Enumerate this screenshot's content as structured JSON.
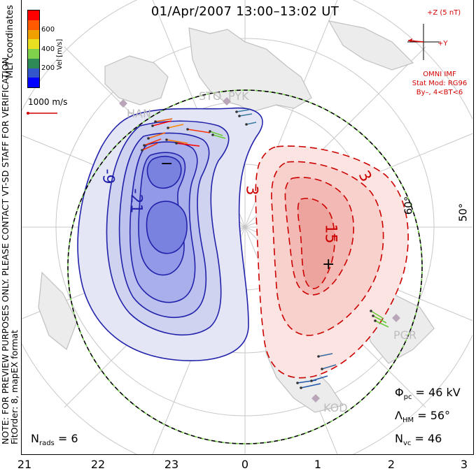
{
  "title": "01/Apr/2007 13:00–13:02 UT",
  "colorbar": {
    "unit_label": "Vel [m/s]",
    "ticks": [
      "600",
      "400",
      "200"
    ],
    "colors": [
      "#0000ff",
      "#3355cc",
      "#2e8b57",
      "#7fd04a",
      "#e8e020",
      "#f0a000",
      "#ff5a00",
      "#ff0000"
    ]
  },
  "side_texts": {
    "mlt_coords": "MLT coordinates",
    "note": "NOTE: FOR PREVIEW PURPOSES ONLY. PLEASE CONTACT VT-SD STAFF FOR VERIFICATION.",
    "fitorder": "FitOrder: 8, mapEX format"
  },
  "vector_scale": {
    "label": "1000 m/s",
    "color": "#d40000"
  },
  "imf": {
    "z_label": "+Z (5 nT)",
    "y_label": "+Y",
    "source": "OMNI IMF",
    "stat_mod": "Stat Mod: RG96",
    "conditions": "By–, 4<BT<6",
    "color": "#d40000"
  },
  "contours": {
    "negative_labels": [
      "-9",
      "-21",
      "−"
    ],
    "positive_labels": [
      "3",
      "3",
      "15",
      "+"
    ],
    "negative_color": "#2222aa",
    "positive_color": "#cc0000"
  },
  "latitude_labels": [
    "60°",
    "50°"
  ],
  "stations": [
    "STO",
    "PYK",
    "HAN",
    "PGR",
    "KOD"
  ],
  "stats": {
    "phi_pc": {
      "symbol": "Φ",
      "sub": "pc",
      "value": "= 46 kV"
    },
    "lambda_hm": {
      "symbol": "Λ",
      "sub": "HM",
      "value": "= 56°"
    },
    "n_vc": {
      "symbol": "N",
      "sub": "vc",
      "value": "= 46"
    },
    "n_rads": {
      "symbol": "N",
      "sub": "rads",
      "value": "= 6"
    }
  },
  "mlt_axis": [
    "21",
    "22",
    "23",
    "0",
    "1",
    "2",
    "3"
  ]
}
